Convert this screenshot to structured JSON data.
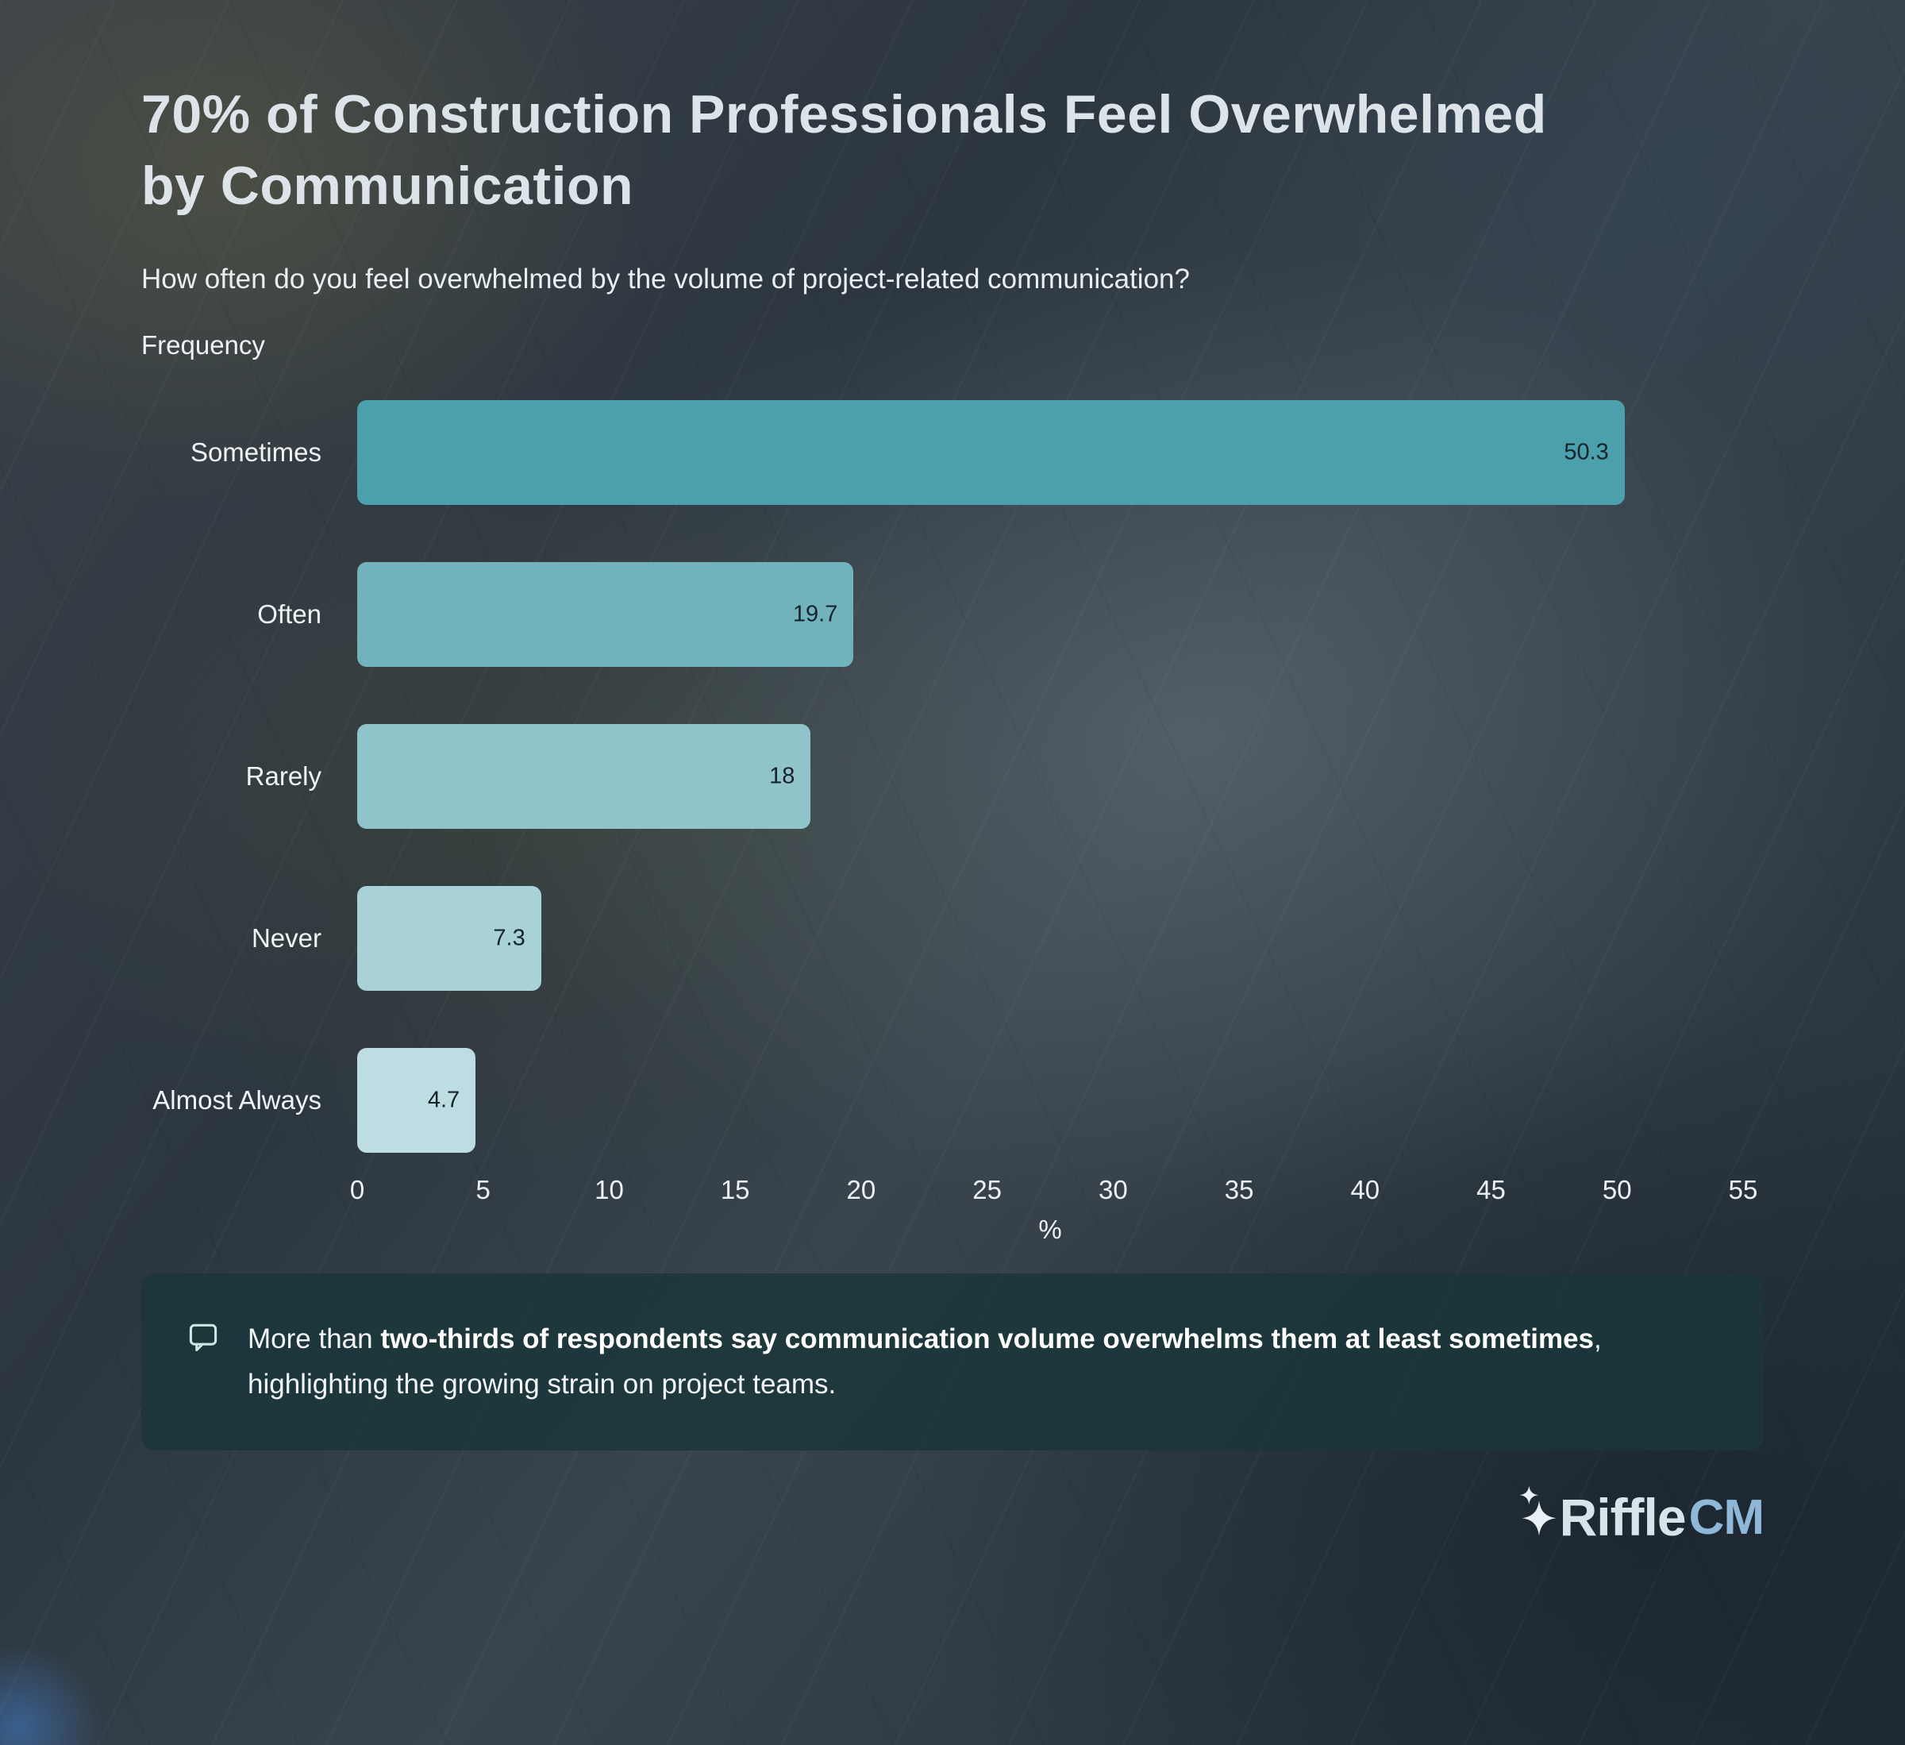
{
  "page": {
    "title": "70% of Construction Professionals Feel Overwhelmed by Communication",
    "question": "How often do you feel overwhelmed by the volume of project-related communication?",
    "callout": {
      "prefix": "More than ",
      "bold": "two-thirds of respondents say communication volume overwhelms them at least sometimes",
      "suffix": ", highlighting the growing strain on project teams."
    },
    "logo": {
      "word": "Riffle",
      "suffix": "CM"
    }
  },
  "chart_data": {
    "type": "bar",
    "orientation": "horizontal",
    "title": "70% of Construction Professionals Feel Overwhelmed by Communication",
    "question": "How often do you feel overwhelmed by the volume of project-related communication?",
    "ylabel": "Frequency",
    "xlabel": "%",
    "categories": [
      "Sometimes",
      "Often",
      "Rarely",
      "Never",
      "Almost Always"
    ],
    "values": [
      50.3,
      19.7,
      18,
      7.3,
      4.7
    ],
    "bar_colors": [
      "#4ba0ab",
      "#72b2bb",
      "#8fc4cb",
      "#a8d2d8",
      "#bedde2"
    ],
    "value_label_color": "#15242c",
    "xlim": [
      0,
      55
    ],
    "xticks": [
      0,
      5,
      10,
      15,
      20,
      25,
      30,
      35,
      40,
      45,
      50,
      55
    ],
    "grid": false,
    "legend": null
  }
}
